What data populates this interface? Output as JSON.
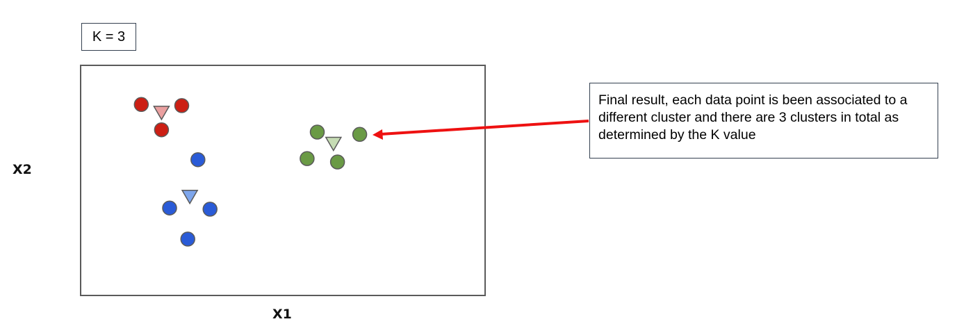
{
  "k_label": "K = 3",
  "axis": {
    "x_label": "X1",
    "y_label": "X2"
  },
  "annotation": {
    "text": "Final result, each data point is been associated to a different cluster and there are 3 clusters in total as determined by the K value"
  },
  "colors": {
    "red_point": "#cc1f14",
    "red_centroid": "#eaa0a0",
    "blue_point": "#2a5bd7",
    "blue_centroid": "#7ea6ec",
    "green_point": "#6a9a45",
    "green_centroid": "#c6dcb4",
    "arrow": "#ee1111",
    "outline": "#5a5a5a"
  },
  "clusters": [
    {
      "color": "red",
      "centroid": {
        "x": 2.0,
        "y": 7.95
      },
      "points": [
        {
          "x": 1.5,
          "y": 8.3
        },
        {
          "x": 2.5,
          "y": 8.25
        },
        {
          "x": 2.0,
          "y": 7.2
        }
      ]
    },
    {
      "color": "blue",
      "centroid": {
        "x": 2.7,
        "y": 4.3
      },
      "points": [
        {
          "x": 2.9,
          "y": 5.9
        },
        {
          "x": 2.2,
          "y": 3.8
        },
        {
          "x": 3.2,
          "y": 3.75
        },
        {
          "x": 2.65,
          "y": 2.45
        }
      ]
    },
    {
      "color": "green",
      "centroid": {
        "x": 6.25,
        "y": 6.6
      },
      "points": [
        {
          "x": 5.85,
          "y": 7.1
        },
        {
          "x": 6.9,
          "y": 7.0
        },
        {
          "x": 5.6,
          "y": 5.95
        },
        {
          "x": 6.35,
          "y": 5.8
        }
      ]
    }
  ]
}
